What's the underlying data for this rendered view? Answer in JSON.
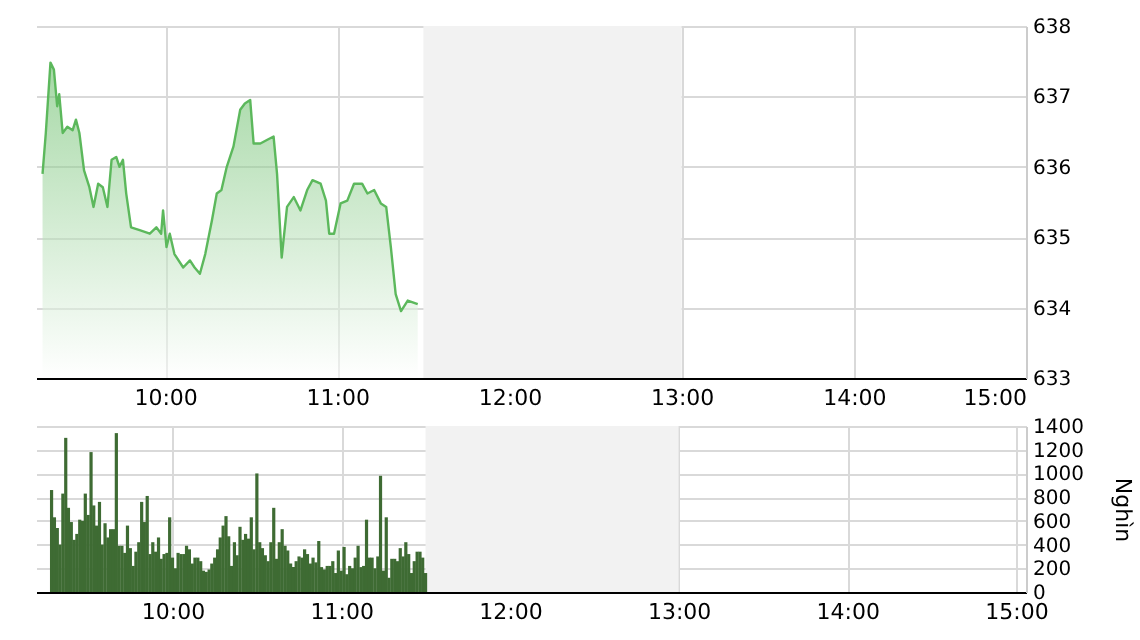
{
  "chart_data": [
    {
      "type": "area",
      "x": [
        9.288,
        9.307,
        9.334,
        9.354,
        9.373,
        9.385,
        9.405,
        9.432,
        9.463,
        9.482,
        9.502,
        9.529,
        9.56,
        9.584,
        9.611,
        9.638,
        9.665,
        9.689,
        9.716,
        9.735,
        9.755,
        9.774,
        9.802,
        9.852,
        9.911,
        9.949,
        9.977,
        9.988,
        10.008,
        10.027,
        10.054,
        10.105,
        10.144,
        10.171,
        10.202,
        10.233,
        10.272,
        10.3,
        10.327,
        10.358,
        10.397,
        10.436,
        10.463,
        10.494,
        10.514,
        10.553,
        10.591,
        10.63,
        10.65,
        10.677,
        10.708,
        10.747,
        10.786,
        10.825,
        10.856,
        10.903,
        10.934,
        10.953,
        10.981,
        11.019,
        11.058,
        11.097,
        11.144,
        11.175,
        11.214,
        11.253,
        11.284,
        11.311,
        11.339,
        11.37,
        11.409,
        11.467
      ],
      "series": [
        {
          "color": "#5cb85c",
          "values": [
            635.9,
            636.48,
            637.48,
            637.38,
            636.86,
            637.03,
            636.48,
            636.57,
            636.52,
            636.67,
            636.48,
            635.95,
            635.71,
            635.43,
            635.76,
            635.71,
            635.43,
            636.1,
            636.14,
            636.0,
            636.1,
            635.62,
            635.14,
            635.1,
            635.05,
            635.14,
            635.05,
            635.38,
            634.86,
            635.05,
            634.76,
            634.57,
            634.67,
            634.57,
            634.48,
            634.76,
            635.24,
            635.62,
            635.67,
            636.0,
            636.29,
            636.81,
            636.9,
            636.95,
            636.33,
            636.33,
            636.38,
            636.43,
            635.9,
            634.71,
            635.43,
            635.57,
            635.38,
            635.67,
            635.81,
            635.76,
            635.52,
            635.05,
            635.05,
            635.48,
            635.52,
            635.76,
            635.76,
            635.62,
            635.67,
            635.48,
            635.43,
            634.86,
            634.19,
            633.95,
            634.1,
            634.05
          ]
        }
      ],
      "xlim": [
        9.25,
        15
      ],
      "xticks": [
        {
          "value": 10,
          "label": "10:00"
        },
        {
          "value": 11,
          "label": "11:00"
        },
        {
          "value": 12,
          "label": "12:00"
        },
        {
          "value": 13,
          "label": "13:00"
        },
        {
          "value": 14,
          "label": "14:00"
        },
        {
          "value": 15,
          "label": "15:00"
        }
      ],
      "ylim": [
        633,
        638
      ],
      "yticks": [
        633,
        634,
        635,
        636,
        637,
        638
      ],
      "grid": true,
      "bands": [
        {
          "axis": "x",
          "from": 11.5,
          "to": 13,
          "color": "#f2f2f2"
        }
      ]
    },
    {
      "type": "bar",
      "ylabel": "Nghìn",
      "x": [
        9.283,
        9.3,
        9.317,
        9.333,
        9.35,
        9.367,
        9.383,
        9.4,
        9.417,
        9.433,
        9.45,
        9.467,
        9.483,
        9.5,
        9.517,
        9.533,
        9.55,
        9.567,
        9.583,
        9.6,
        9.617,
        9.633,
        9.65,
        9.667,
        9.683,
        9.7,
        9.717,
        9.733,
        9.75,
        9.767,
        9.783,
        9.8,
        9.817,
        9.833,
        9.85,
        9.867,
        9.883,
        9.9,
        9.917,
        9.933,
        9.95,
        9.967,
        9.983,
        10,
        10.017,
        10.033,
        10.05,
        10.067,
        10.083,
        10.1,
        10.117,
        10.133,
        10.15,
        10.167,
        10.183,
        10.2,
        10.217,
        10.233,
        10.25,
        10.267,
        10.283,
        10.3,
        10.317,
        10.333,
        10.35,
        10.367,
        10.383,
        10.4,
        10.417,
        10.433,
        10.45,
        10.467,
        10.483,
        10.5,
        10.517,
        10.533,
        10.55,
        10.567,
        10.583,
        10.6,
        10.617,
        10.633,
        10.65,
        10.667,
        10.683,
        10.7,
        10.717,
        10.733,
        10.75,
        10.767,
        10.783,
        10.8,
        10.817,
        10.833,
        10.85,
        10.867,
        10.883,
        10.9,
        10.917,
        10.933,
        10.95,
        10.967,
        10.983,
        11,
        11.017,
        11.033,
        11.05,
        11.067,
        11.083,
        11.1,
        11.117,
        11.133,
        11.15,
        11.167,
        11.183,
        11.2,
        11.217,
        11.233,
        11.25,
        11.267,
        11.283,
        11.3,
        11.317,
        11.333,
        11.35,
        11.367,
        11.383,
        11.4,
        11.417,
        11.433,
        11.45,
        11.467,
        11.483,
        11.5
      ],
      "series": [
        {
          "color": "#3e6b33",
          "values": [
            860,
            630,
            540,
            400,
            830,
            1300,
            710,
            590,
            440,
            490,
            610,
            600,
            830,
            650,
            1180,
            730,
            560,
            760,
            400,
            580,
            460,
            530,
            530,
            1340,
            390,
            390,
            330,
            560,
            370,
            220,
            340,
            420,
            760,
            590,
            810,
            320,
            420,
            340,
            460,
            280,
            320,
            330,
            630,
            290,
            200,
            330,
            320,
            320,
            390,
            360,
            240,
            290,
            290,
            260,
            180,
            170,
            190,
            240,
            290,
            360,
            460,
            560,
            640,
            470,
            220,
            420,
            310,
            550,
            440,
            490,
            450,
            630,
            360,
            1000,
            420,
            370,
            310,
            260,
            420,
            710,
            280,
            420,
            530,
            390,
            350,
            240,
            210,
            260,
            300,
            290,
            360,
            320,
            240,
            290,
            250,
            430,
            210,
            190,
            220,
            220,
            260,
            160,
            350,
            180,
            380,
            150,
            220,
            200,
            290,
            390,
            210,
            220,
            610,
            290,
            290,
            200,
            300,
            980,
            180,
            630,
            120,
            280,
            280,
            260,
            370,
            300,
            420,
            320,
            160,
            260,
            340,
            340,
            290,
            160
          ]
        }
      ],
      "xlim": [
        9.25,
        15
      ],
      "xticks": [
        {
          "value": 10,
          "label": "10:00"
        },
        {
          "value": 11,
          "label": "11:00"
        },
        {
          "value": 12,
          "label": "12:00"
        },
        {
          "value": 13,
          "label": "13:00"
        },
        {
          "value": 14,
          "label": "14:00"
        },
        {
          "value": 15,
          "label": "15:00"
        }
      ],
      "ylim": [
        0,
        1400
      ],
      "yticks": [
        0,
        200,
        400,
        600,
        800,
        1000,
        1200,
        1400
      ],
      "grid": true,
      "bands": [
        {
          "axis": "x",
          "from": 11.5,
          "to": 13,
          "color": "#f2f2f2"
        }
      ]
    }
  ]
}
